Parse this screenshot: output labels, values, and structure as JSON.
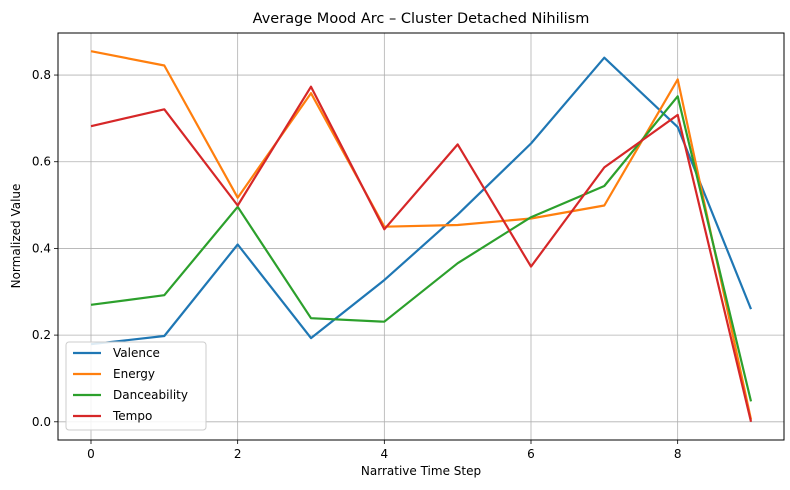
{
  "chart_data": {
    "type": "line",
    "title": "Average Mood Arc – Cluster Detached Nihilism",
    "xlabel": "Narrative Time Step",
    "ylabel": "Normalized Value",
    "x": [
      0,
      1,
      2,
      3,
      4,
      5,
      6,
      7,
      8,
      9
    ],
    "xlim": [
      -0.45,
      9.45
    ],
    "ylim": [
      -0.042,
      0.897
    ],
    "xticks": [
      0,
      2,
      4,
      6,
      8
    ],
    "yticks": [
      0.0,
      0.2,
      0.4,
      0.6,
      0.8
    ],
    "xtick_labels": [
      "0",
      "2",
      "4",
      "6",
      "8"
    ],
    "ytick_labels": [
      "0.0",
      "0.2",
      "0.4",
      "0.6",
      "0.8"
    ],
    "grid": true,
    "legend_position": "lower-left",
    "series": [
      {
        "name": "Valence",
        "color": "#1f77b4",
        "values": [
          0.179,
          0.198,
          0.409,
          0.193,
          0.327,
          0.478,
          0.642,
          0.84,
          0.68,
          0.26
        ]
      },
      {
        "name": "Energy",
        "color": "#ff7f0e",
        "values": [
          0.855,
          0.822,
          0.517,
          0.758,
          0.45,
          0.454,
          0.469,
          0.499,
          0.79,
          0.005
        ]
      },
      {
        "name": "Danceability",
        "color": "#2ca02c",
        "values": [
          0.27,
          0.292,
          0.496,
          0.239,
          0.231,
          0.366,
          0.472,
          0.544,
          0.751,
          0.047
        ]
      },
      {
        "name": "Tempo",
        "color": "#d62728",
        "values": [
          0.682,
          0.721,
          0.499,
          0.773,
          0.444,
          0.64,
          0.358,
          0.587,
          0.708,
          0.0
        ]
      }
    ]
  }
}
